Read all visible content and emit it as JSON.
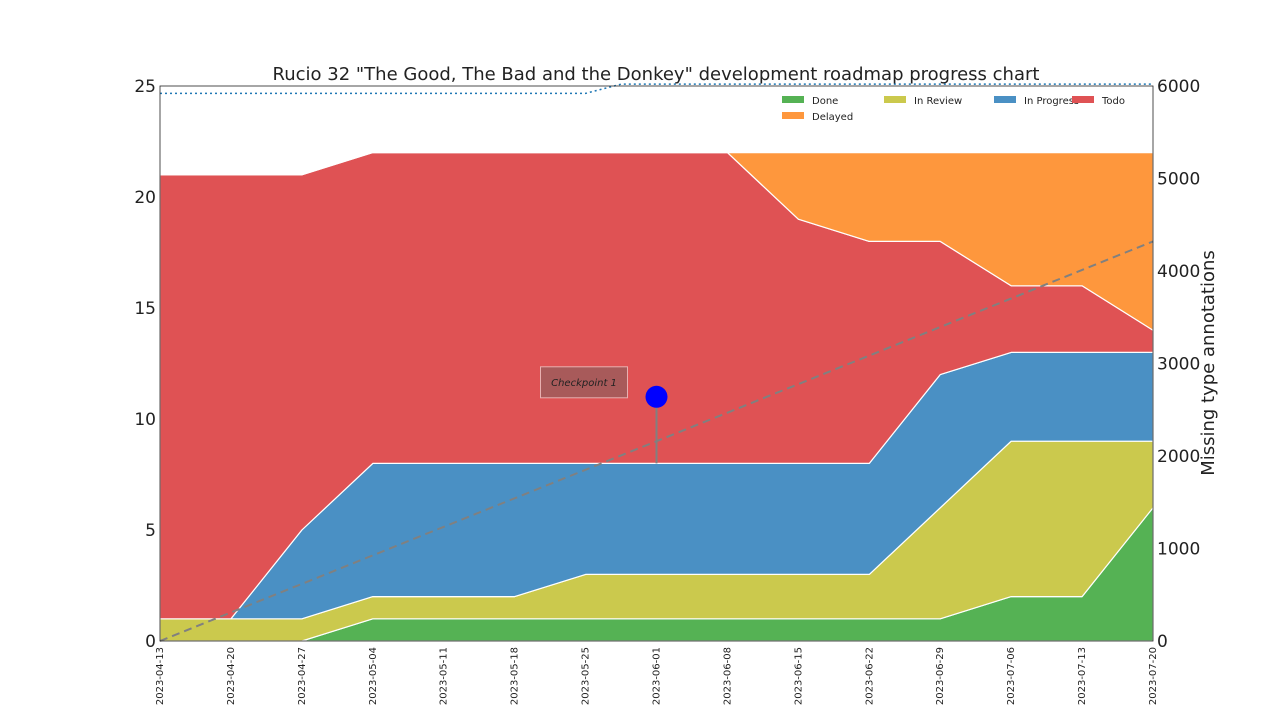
{
  "chart_data": {
    "type": "area",
    "title": "Rucio 32 \"The Good, The Bad and the Donkey\" development roadmap progress chart",
    "xlabel": "",
    "ylabel": "",
    "y2label": "Missing type annotations",
    "ylim": [
      0,
      25
    ],
    "y2lim": [
      0,
      6000
    ],
    "yticks": [
      0,
      5,
      10,
      15,
      20,
      25
    ],
    "y2ticks": [
      0,
      1000,
      2000,
      3000,
      4000,
      5000,
      6000
    ],
    "dates": [
      "2023-04-13",
      "2023-04-20",
      "2023-04-27",
      "2023-05-04",
      "2023-05-11",
      "2023-05-18",
      "2023-05-25",
      "2023-06-01",
      "2023-06-08",
      "2023-06-15",
      "2023-06-22",
      "2023-06-29",
      "2023-07-06",
      "2023-07-13",
      "2023-07-20"
    ],
    "series": [
      {
        "name": "Done",
        "color": "#55b254",
        "values": [
          0,
          0,
          0,
          1,
          1,
          1,
          1,
          1,
          1,
          1,
          1,
          1,
          2,
          2,
          6
        ]
      },
      {
        "name": "In Review",
        "color": "#cbc94d",
        "values": [
          1,
          1,
          1,
          1,
          1,
          1,
          2,
          2,
          2,
          2,
          2,
          5,
          7,
          7,
          3
        ]
      },
      {
        "name": "In Progress",
        "color": "#4a90c4",
        "values": [
          0,
          0,
          4,
          6,
          6,
          6,
          5,
          5,
          5,
          5,
          5,
          6,
          4,
          4,
          4
        ]
      },
      {
        "name": "Todo",
        "color": "#df5254",
        "values": [
          20,
          20,
          16,
          14,
          14,
          14,
          14,
          14,
          14,
          11,
          10,
          6,
          3,
          3,
          1
        ]
      },
      {
        "name": "Delayed",
        "color": "#fe973d",
        "values": [
          0,
          0,
          0,
          0,
          0,
          0,
          0,
          0,
          0,
          3,
          4,
          4,
          6,
          6,
          8
        ]
      }
    ],
    "secondary_lines": [
      {
        "name": "trend",
        "style": "dashed",
        "color": "#808080",
        "x_index": [
          0,
          14
        ],
        "values": [
          0,
          4320
        ]
      },
      {
        "name": "missing annotations",
        "style": "dotted",
        "color": "#1f77b4",
        "x_index": [
          0,
          6,
          6.5,
          14
        ],
        "values": [
          5920,
          5920,
          6020,
          6020
        ]
      }
    ],
    "annotations": [
      {
        "text": "Checkpoint 1",
        "x_index": 7,
        "y": 11,
        "arrow_to_y": 8,
        "marker_color": "#0000ff"
      }
    ],
    "legend": {
      "position": "top-right",
      "columns": 4
    },
    "grid": false
  }
}
